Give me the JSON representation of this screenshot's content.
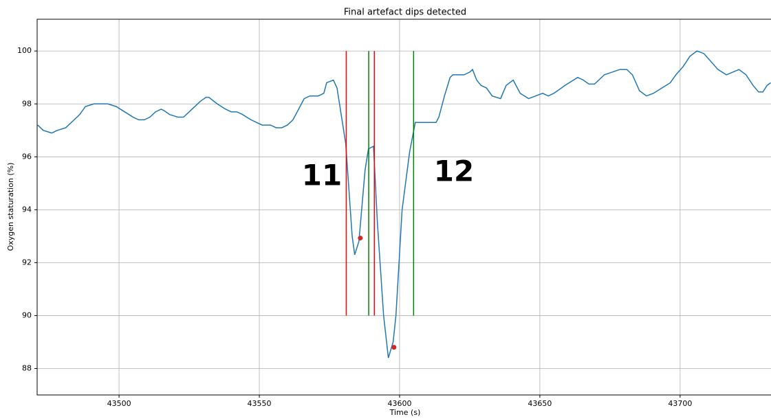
{
  "chart_data": {
    "type": "line",
    "title": "Final artefact dips detected",
    "xlabel": "Time (s)",
    "ylabel": "Oxygen staturation (%)",
    "xlim": [
      43470.8,
      43732.4
    ],
    "ylim": [
      87.0,
      101.2
    ],
    "xticks": [
      43500,
      43550,
      43600,
      43650,
      43700
    ],
    "yticks": [
      88,
      90,
      92,
      94,
      96,
      98,
      100
    ],
    "grid": true,
    "series": [
      {
        "color": "#1f77b4",
        "x": [
          43471,
          43473,
          43476,
          43478,
          43481,
          43484,
          43486,
          43488,
          43491,
          43496,
          43499,
          43502,
          43505,
          43507,
          43509,
          43511,
          43513,
          43515,
          43516,
          43518,
          43521,
          43523,
          43526,
          43529,
          43531,
          43532,
          43535,
          43538,
          43540,
          43542,
          43544,
          43547,
          43549,
          43551,
          43554,
          43556,
          43558,
          43560,
          43562,
          43564,
          43566,
          43568,
          43571,
          43573,
          43574,
          43576.4,
          43577.7,
          43580.8,
          43583.1,
          43584.0,
          43585.5,
          43587.7,
          43588.9,
          43590.7,
          43592.1,
          43594.3,
          43596.0,
          43597.7,
          43598.7,
          43600.9,
          43603.6,
          43605.6,
          43613,
          43614,
          43616,
          43618,
          43619,
          43623,
          43625,
          43626,
          43627.5,
          43629,
          43631,
          43633,
          43636,
          43638,
          43640.5,
          43643,
          43646,
          43651,
          43653,
          43655,
          43659,
          43663.5,
          43665.5,
          43667.5,
          43669.5,
          43673,
          43678.5,
          43681,
          43683,
          43685.5,
          43688,
          43690.5,
          43693.5,
          43696.5,
          43698.5,
          43701,
          43703.5,
          43706,
          43708.5,
          43713.5,
          43716.5,
          43721,
          43723.5,
          43726,
          43728,
          43729.5,
          43731,
          43732.3
        ],
        "values": [
          97.2,
          97.0,
          96.9,
          97.0,
          97.1,
          97.4,
          97.6,
          97.9,
          98.0,
          98.0,
          97.9,
          97.7,
          97.5,
          97.4,
          97.4,
          97.5,
          97.7,
          97.8,
          97.75,
          97.6,
          97.5,
          97.5,
          97.8,
          98.1,
          98.25,
          98.25,
          98.0,
          97.8,
          97.7,
          97.7,
          97.6,
          97.4,
          97.3,
          97.2,
          97.2,
          97.1,
          97.1,
          97.2,
          97.4,
          97.8,
          98.2,
          98.3,
          98.3,
          98.4,
          98.8,
          98.9,
          98.6,
          96.5,
          93.0,
          92.3,
          92.8,
          95.5,
          96.3,
          96.4,
          93.5,
          90.0,
          88.4,
          89.0,
          90.0,
          94.0,
          96.2,
          97.3,
          97.3,
          97.5,
          98.3,
          99.0,
          99.1,
          99.1,
          99.2,
          99.3,
          98.9,
          98.7,
          98.6,
          98.3,
          98.2,
          98.7,
          98.9,
          98.4,
          98.2,
          98.4,
          98.3,
          98.4,
          98.7,
          99.0,
          98.9,
          98.75,
          98.75,
          99.1,
          99.3,
          99.3,
          99.1,
          98.5,
          98.3,
          98.4,
          98.6,
          98.8,
          99.1,
          99.4,
          99.8,
          100.0,
          99.9,
          99.3,
          99.1,
          99.3,
          99.1,
          98.7,
          98.45,
          98.45,
          98.7,
          98.8
        ]
      }
    ],
    "points": {
      "color": "#d62728",
      "x": [
        43586,
        43598
      ],
      "values": [
        92.93,
        88.8
      ]
    },
    "vlines": [
      {
        "x": 43581,
        "ymin": 90,
        "ymax": 100,
        "color": "#ff0000"
      },
      {
        "x": 43589,
        "ymin": 90,
        "ymax": 100,
        "color": "#008000"
      },
      {
        "x": 43591,
        "ymin": 90,
        "ymax": 100,
        "color": "#ff0000"
      },
      {
        "x": 43605,
        "ymin": 90,
        "ymax": 100,
        "color": "#008000"
      }
    ],
    "annotations": [
      "11",
      "12"
    ]
  }
}
